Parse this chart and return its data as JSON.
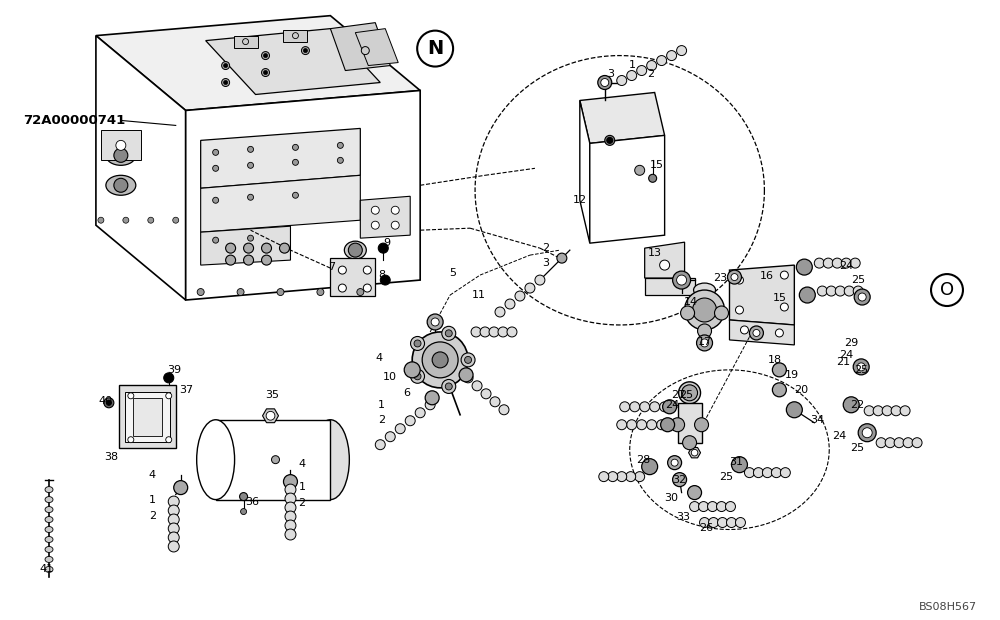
{
  "background_color": "#ffffff",
  "figure_width": 10.0,
  "figure_height": 6.2,
  "dpi": 100,
  "label_part_id": "72A00000741",
  "label_N": "N",
  "label_O": "O",
  "watermark": "BS08H567",
  "lc": "#000000",
  "lw": 0.8,
  "gray": "#888888",
  "lgray": "#cccccc"
}
